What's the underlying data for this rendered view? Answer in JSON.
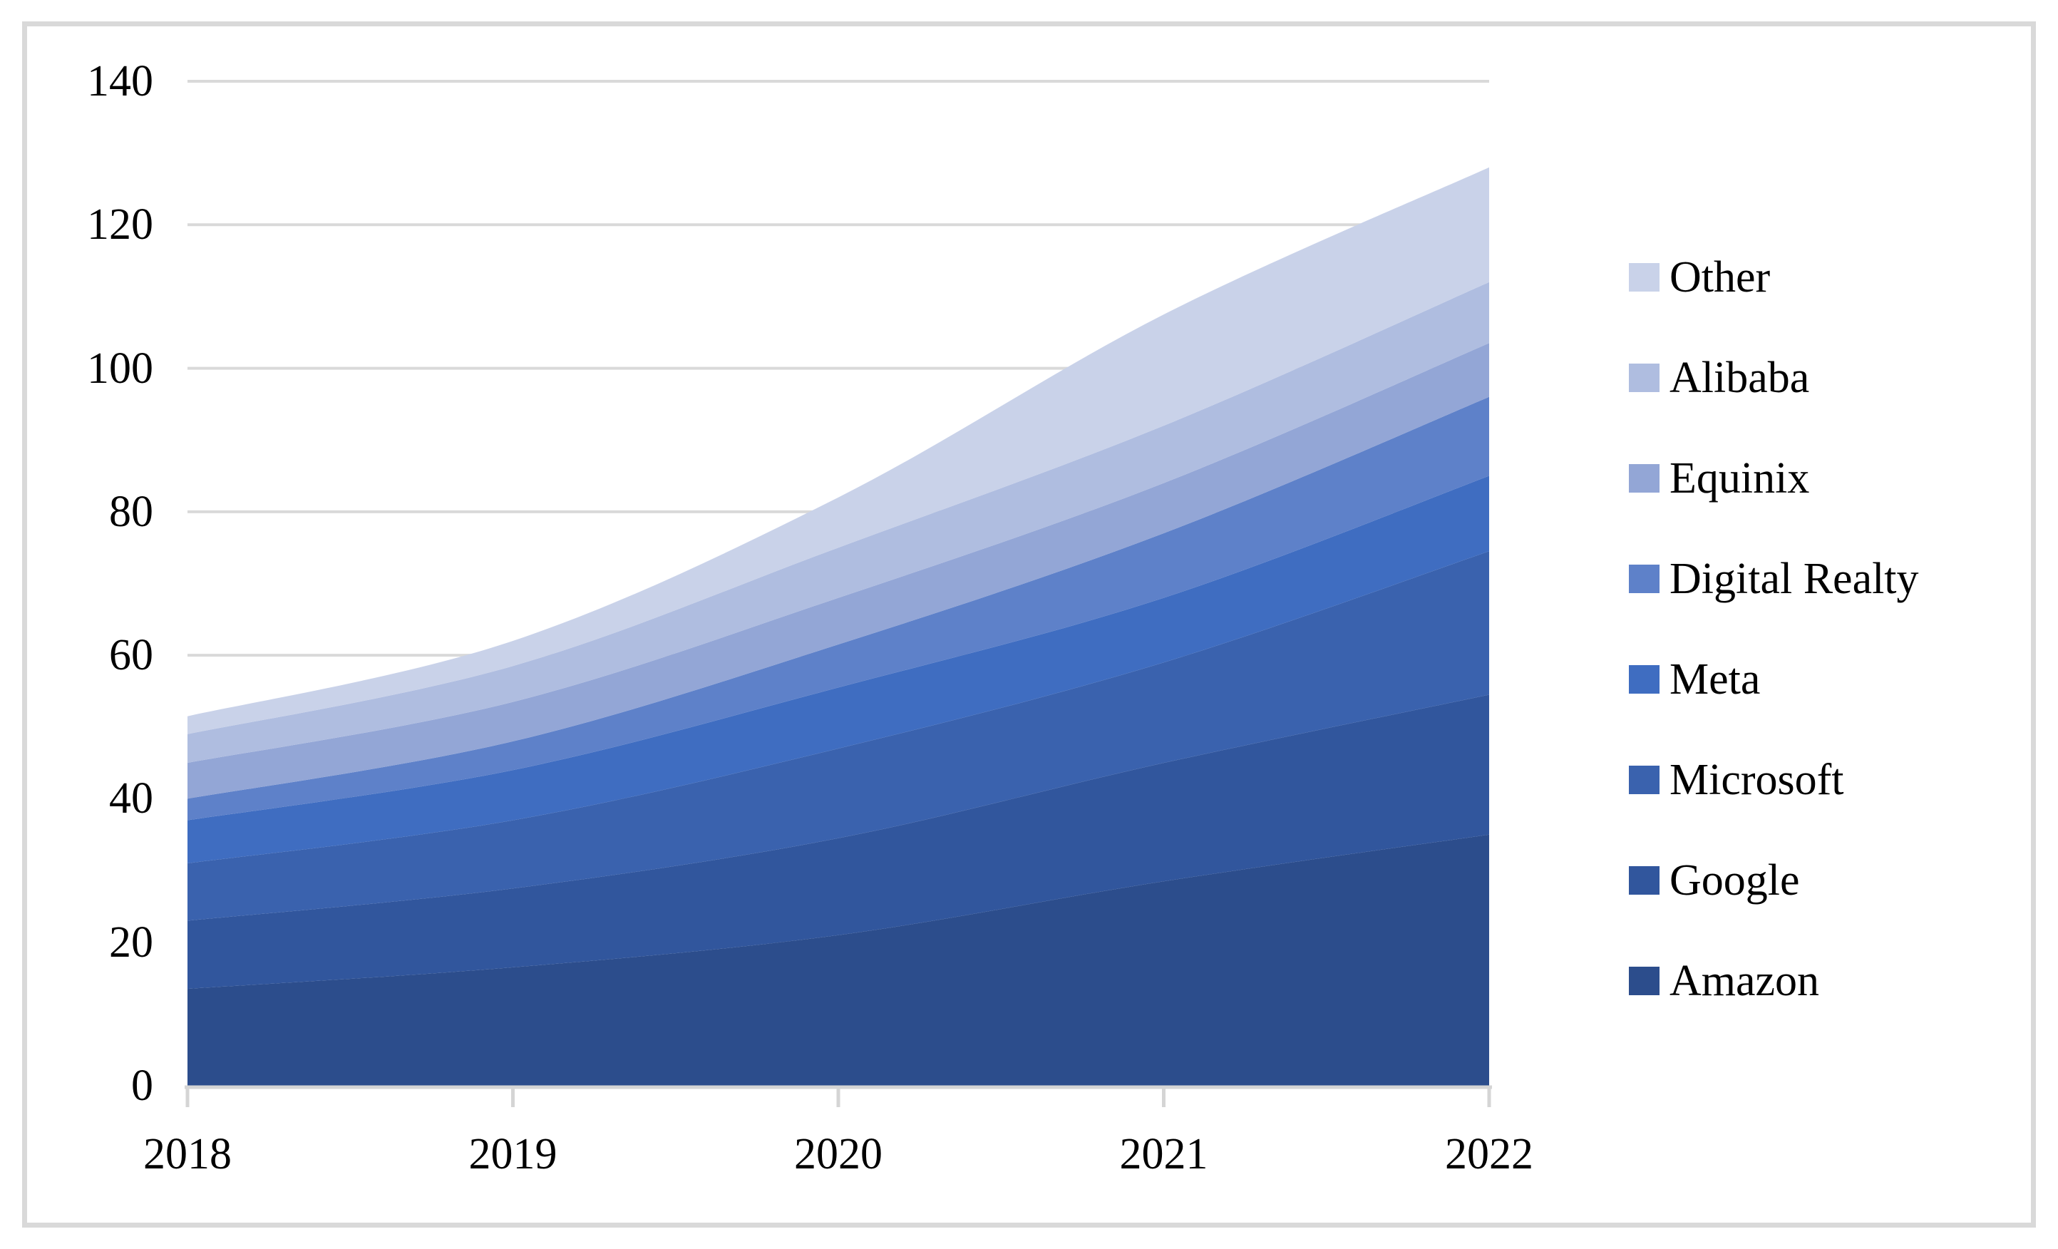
{
  "figure": {
    "background": "#ffffff",
    "frame_border_color": "#d9d9d9",
    "gridline_color": "#d9d9d9",
    "axis_line_color": "#d5d5d5",
    "text_color": "#000000"
  },
  "chart_data": {
    "type": "area",
    "stacked": true,
    "title": "",
    "xlabel": "",
    "ylabel": "",
    "categories": [
      "2018",
      "2019",
      "2020",
      "2021",
      "2022"
    ],
    "series": [
      {
        "name": "Amazon",
        "color": "#2c4d8c",
        "values": [
          13.5,
          16.5,
          21.0,
          28.5,
          35.0
        ]
      },
      {
        "name": "Google",
        "color": "#31569d",
        "values": [
          9.5,
          11.0,
          13.5,
          16.5,
          19.5
        ]
      },
      {
        "name": "Microsoft",
        "color": "#3a62ae",
        "values": [
          8.0,
          9.5,
          12.5,
          14.0,
          20.0
        ]
      },
      {
        "name": "Meta",
        "color": "#3f6dc1",
        "values": [
          6.0,
          7.0,
          8.5,
          9.0,
          10.5
        ]
      },
      {
        "name": "Digital Realty",
        "color": "#5e81c9",
        "values": [
          3.0,
          4.0,
          6.0,
          9.0,
          11.0
        ]
      },
      {
        "name": "Equinix",
        "color": "#93a6d6",
        "values": [
          5.0,
          5.5,
          6.5,
          7.0,
          7.5
        ]
      },
      {
        "name": "Alibaba",
        "color": "#afbde0",
        "values": [
          4.0,
          5.0,
          7.0,
          8.0,
          8.5
        ]
      },
      {
        "name": "Other",
        "color": "#c9d2e9",
        "values": [
          2.5,
          3.5,
          7.0,
          15.5,
          16.0
        ]
      }
    ],
    "stack_totals": [
      51.5,
      62.0,
      82.0,
      107.5,
      128.0
    ],
    "y_axis": {
      "min": 0,
      "max": 140,
      "tick_step": 20,
      "tick_labels": [
        "0",
        "20",
        "40",
        "60",
        "80",
        "100",
        "120",
        "140"
      ]
    },
    "x_axis": {
      "tick_labels": [
        "2018",
        "2019",
        "2020",
        "2021",
        "2022"
      ]
    },
    "grid": {
      "visible": true,
      "horizontal_only": true
    },
    "legend": {
      "position": "right",
      "order_top_to_bottom": [
        "Other",
        "Alibaba",
        "Equinix",
        "Digital Realty",
        "Meta",
        "Microsoft",
        "Google",
        "Amazon"
      ]
    }
  }
}
